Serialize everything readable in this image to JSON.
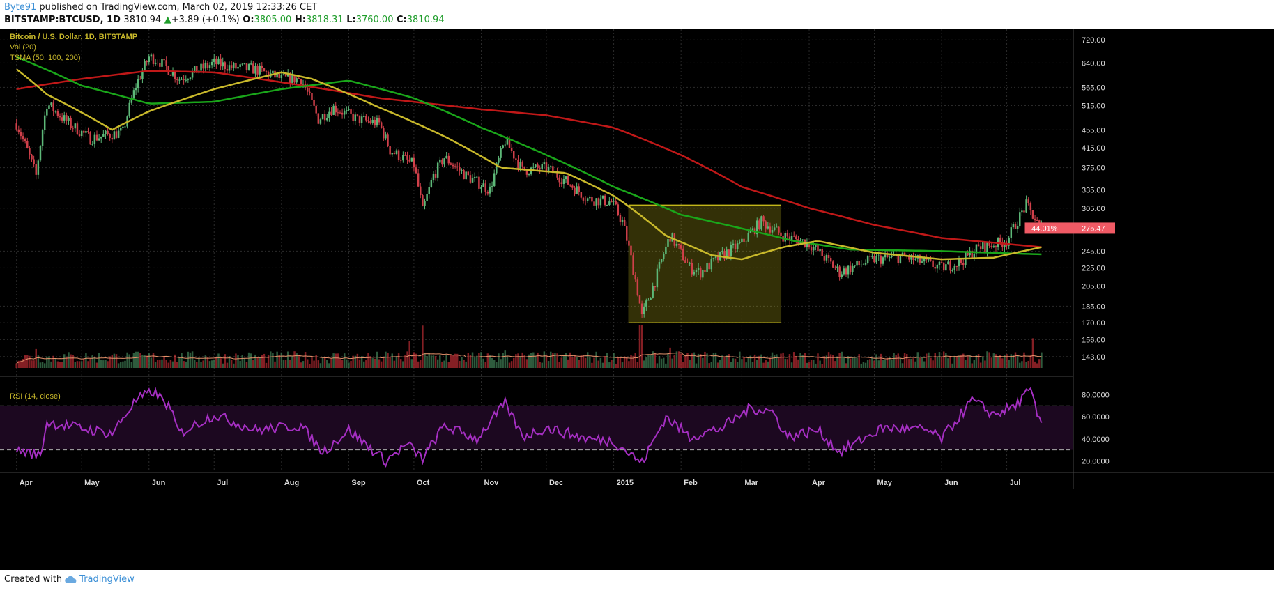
{
  "header": {
    "author": "Byte91",
    "published": "published on TradingView.com, March 02, 2019 12:33:26 CET",
    "symbol": "BITSTAMP:BTCUSD, 1D",
    "last": "3810.94",
    "change_arrow": "▲",
    "change": "+3.89 (+0.1%)",
    "o_label": "O:",
    "o": "3805.00",
    "h_label": "H:",
    "h": "3818.31",
    "l_label": "L:",
    "l": "3760.00",
    "c_label": "C:",
    "c": "3810.94"
  },
  "footer": {
    "created_with": "Created with",
    "brand": "TradingView",
    "brand_icon": "tradingview-cloud-icon"
  },
  "colors": {
    "background": "#000000",
    "up": "#3d7a52",
    "down": "#b02a30",
    "sma50": "#c9b92b",
    "sma100": "#1aa61a",
    "sma200": "#c01818",
    "rsi": "#a52fc2",
    "highlight": "#ffee22",
    "price_tag": "#f05a65"
  },
  "chart_data": [
    {
      "type": "candlestick",
      "title": "Bitcoin / U.S. Dollar, 1D, BITSTAMP",
      "legend": [
        "Vol (20)",
        "TSMA (50, 100, 200)"
      ],
      "y_scale": "log",
      "ylim": [
        135,
        760
      ],
      "y_ticks": [
        "720.00",
        "640.00",
        "565.00",
        "515.00",
        "455.00",
        "415.00",
        "375.00",
        "335.00",
        "305.00",
        "245.00",
        "225.00",
        "205.00",
        "185.00",
        "170.00",
        "156.00",
        "143.00"
      ],
      "x_ticks": [
        "Apr",
        "May",
        "Jun",
        "Jul",
        "Aug",
        "Sep",
        "Oct",
        "Nov",
        "Dec",
        "2015",
        "Feb",
        "Mar",
        "Apr",
        "May",
        "Jun",
        "Jul"
      ],
      "price_path": [
        [
          "2014-04-01",
          470
        ],
        [
          "2014-04-10",
          360
        ],
        [
          "2014-04-15",
          520
        ],
        [
          "2014-04-25",
          470
        ],
        [
          "2014-05-05",
          435
        ],
        [
          "2014-05-20",
          450
        ],
        [
          "2014-05-26",
          570
        ],
        [
          "2014-06-01",
          660
        ],
        [
          "2014-06-05",
          650
        ],
        [
          "2014-06-15",
          590
        ],
        [
          "2014-07-01",
          640
        ],
        [
          "2014-07-10",
          625
        ],
        [
          "2014-07-20",
          620
        ],
        [
          "2014-08-01",
          590
        ],
        [
          "2014-08-10",
          590
        ],
        [
          "2014-08-18",
          480
        ],
        [
          "2014-08-25",
          510
        ],
        [
          "2014-09-05",
          480
        ],
        [
          "2014-09-15",
          470
        ],
        [
          "2014-09-20",
          410
        ],
        [
          "2014-10-01",
          380
        ],
        [
          "2014-10-05",
          300
        ],
        [
          "2014-10-10",
          360
        ],
        [
          "2014-10-15",
          395
        ],
        [
          "2014-10-25",
          360
        ],
        [
          "2014-11-05",
          335
        ],
        [
          "2014-11-12",
          430
        ],
        [
          "2014-11-20",
          370
        ],
        [
          "2014-12-01",
          375
        ],
        [
          "2014-12-10",
          350
        ],
        [
          "2014-12-20",
          320
        ],
        [
          "2014-12-31",
          315
        ],
        [
          "2015-01-05",
          285
        ],
        [
          "2015-01-14",
          175
        ],
        [
          "2015-01-20",
          210
        ],
        [
          "2015-01-27",
          265
        ],
        [
          "2015-02-05",
          225
        ],
        [
          "2015-02-10",
          220
        ],
        [
          "2015-02-20",
          240
        ],
        [
          "2015-03-01",
          255
        ],
        [
          "2015-03-10",
          285
        ],
        [
          "2015-03-20",
          265
        ],
        [
          "2015-04-01",
          255
        ],
        [
          "2015-04-15",
          220
        ],
        [
          "2015-05-01",
          235
        ],
        [
          "2015-05-15",
          238
        ],
        [
          "2015-06-01",
          225
        ],
        [
          "2015-06-10",
          232
        ],
        [
          "2015-06-17",
          248
        ],
        [
          "2015-07-01",
          258
        ],
        [
          "2015-07-10",
          310
        ],
        [
          "2015-07-16",
          278
        ]
      ],
      "sma50": [
        [
          "2014-04-01",
          620
        ],
        [
          "2014-04-15",
          545
        ],
        [
          "2014-05-15",
          455
        ],
        [
          "2014-06-01",
          500
        ],
        [
          "2014-07-01",
          560
        ],
        [
          "2014-08-01",
          610
        ],
        [
          "2014-08-15",
          590
        ],
        [
          "2014-09-15",
          510
        ],
        [
          "2014-10-15",
          440
        ],
        [
          "2014-11-10",
          375
        ],
        [
          "2014-12-10",
          365
        ],
        [
          "2015-01-01",
          325
        ],
        [
          "2015-01-25",
          265
        ],
        [
          "2015-02-15",
          240
        ],
        [
          "2015-03-01",
          235
        ],
        [
          "2015-03-20",
          250
        ],
        [
          "2015-04-05",
          258
        ],
        [
          "2015-05-01",
          243
        ],
        [
          "2015-06-01",
          235
        ],
        [
          "2015-06-25",
          237
        ],
        [
          "2015-07-17",
          250
        ]
      ],
      "sma100": [
        [
          "2014-04-01",
          660
        ],
        [
          "2014-05-01",
          570
        ],
        [
          "2014-06-01",
          520
        ],
        [
          "2014-07-01",
          525
        ],
        [
          "2014-08-01",
          560
        ],
        [
          "2014-09-01",
          585
        ],
        [
          "2014-10-01",
          535
        ],
        [
          "2014-11-01",
          460
        ],
        [
          "2014-12-01",
          400
        ],
        [
          "2015-01-01",
          340
        ],
        [
          "2015-02-01",
          295
        ],
        [
          "2015-03-01",
          275
        ],
        [
          "2015-03-25",
          258
        ],
        [
          "2015-04-20",
          247
        ],
        [
          "2015-06-01",
          245
        ],
        [
          "2015-07-17",
          241
        ]
      ],
      "sma200": [
        [
          "2014-04-01",
          560
        ],
        [
          "2014-05-01",
          590
        ],
        [
          "2014-06-01",
          615
        ],
        [
          "2014-07-01",
          610
        ],
        [
          "2014-08-01",
          580
        ],
        [
          "2014-09-15",
          535
        ],
        [
          "2014-11-01",
          505
        ],
        [
          "2014-12-01",
          490
        ],
        [
          "2015-01-01",
          460
        ],
        [
          "2015-02-01",
          400
        ],
        [
          "2015-03-01",
          340
        ],
        [
          "2015-04-01",
          305
        ],
        [
          "2015-05-01",
          280
        ],
        [
          "2015-06-01",
          262
        ],
        [
          "2015-07-17",
          250
        ]
      ],
      "highlight_box": {
        "x_start": "2015-01-08",
        "x_end": "2015-03-19",
        "y_low": 170,
        "y_high": 310
      },
      "price_tags": [
        {
          "label": "-44.01%",
          "value": "275.47"
        }
      ]
    },
    {
      "type": "line",
      "title": "RSI (14, close)",
      "ylim": [
        12,
        88
      ],
      "y_ticks": [
        "80.0000",
        "60.0000",
        "40.0000",
        "20.0000"
      ],
      "bands": [
        30,
        70
      ],
      "rsi_path": [
        [
          "2014-04-01",
          30
        ],
        [
          "2014-04-12",
          25
        ],
        [
          "2014-04-15",
          55
        ],
        [
          "2014-04-30",
          50
        ],
        [
          "2014-05-15",
          45
        ],
        [
          "2014-05-26",
          75
        ],
        [
          "2014-06-03",
          83
        ],
        [
          "2014-06-10",
          70
        ],
        [
          "2014-06-15",
          45
        ],
        [
          "2014-07-01",
          62
        ],
        [
          "2014-07-20",
          48
        ],
        [
          "2014-08-10",
          52
        ],
        [
          "2014-08-20",
          28
        ],
        [
          "2014-09-01",
          48
        ],
        [
          "2014-09-18",
          20
        ],
        [
          "2014-09-28",
          35
        ],
        [
          "2014-10-05",
          22
        ],
        [
          "2014-10-15",
          52
        ],
        [
          "2014-10-30",
          40
        ],
        [
          "2014-11-12",
          72
        ],
        [
          "2014-11-20",
          42
        ],
        [
          "2014-12-01",
          50
        ],
        [
          "2014-12-20",
          40
        ],
        [
          "2015-01-01",
          38
        ],
        [
          "2015-01-14",
          18
        ],
        [
          "2015-01-25",
          60
        ],
        [
          "2015-02-05",
          42
        ],
        [
          "2015-02-20",
          50
        ],
        [
          "2015-03-05",
          68
        ],
        [
          "2015-03-15",
          65
        ],
        [
          "2015-03-22",
          42
        ],
        [
          "2015-04-05",
          48
        ],
        [
          "2015-04-15",
          28
        ],
        [
          "2015-05-05",
          50
        ],
        [
          "2015-05-25",
          48
        ],
        [
          "2015-06-01",
          40
        ],
        [
          "2015-06-15",
          75
        ],
        [
          "2015-06-25",
          62
        ],
        [
          "2015-07-05",
          70
        ],
        [
          "2015-07-12",
          85
        ],
        [
          "2015-07-16",
          55
        ]
      ]
    }
  ]
}
